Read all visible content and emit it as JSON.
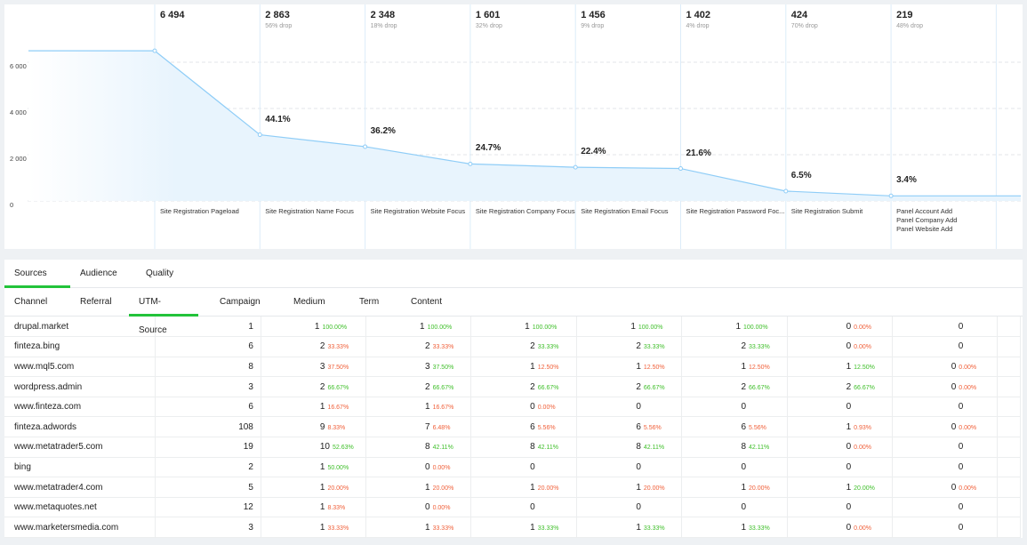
{
  "colors": {
    "line": "#8fcdf7",
    "fill": "#e8f4fd",
    "up": "#3fbf2a",
    "down": "#f0603a",
    "accent": "#22c33a"
  },
  "chart_data": {
    "type": "area",
    "y_ticks": [
      "6 000",
      "4 000",
      "2 000",
      "0"
    ],
    "ylim": [
      0,
      7000
    ],
    "grid": true,
    "steps": [
      {
        "count": "6 494",
        "value": 6494,
        "drop": "",
        "conv": "",
        "labels": [
          "Site Registration Pageload"
        ]
      },
      {
        "count": "2 863",
        "value": 2863,
        "drop": "56% drop",
        "conv": "44.1%",
        "labels": [
          "Site Registration Name Focus"
        ]
      },
      {
        "count": "2 348",
        "value": 2348,
        "drop": "18% drop",
        "conv": "36.2%",
        "labels": [
          "Site Registration Website Focus"
        ]
      },
      {
        "count": "1 601",
        "value": 1601,
        "drop": "32% drop",
        "conv": "24.7%",
        "labels": [
          "Site Registration Company Focus"
        ]
      },
      {
        "count": "1 456",
        "value": 1456,
        "drop": "9% drop",
        "conv": "22.4%",
        "labels": [
          "Site Registration Email Focus"
        ]
      },
      {
        "count": "1 402",
        "value": 1402,
        "drop": "4% drop",
        "conv": "21.6%",
        "labels": [
          "Site Registration Password Foc..."
        ]
      },
      {
        "count": "424",
        "value": 424,
        "drop": "70% drop",
        "conv": "6.5%",
        "labels": [
          "Site Registration Submit"
        ]
      },
      {
        "count": "219",
        "value": 219,
        "drop": "48% drop",
        "conv": "3.4%",
        "labels": [
          "Panel Account Add",
          "Panel Company Add",
          "Panel Website Add"
        ]
      }
    ]
  },
  "tabs": [
    "Sources",
    "Audience",
    "Quality"
  ],
  "active_tab": 0,
  "subtabs": [
    "Channel",
    "Referral",
    "UTM-Source",
    "Campaign",
    "Medium",
    "Term",
    "Content"
  ],
  "active_subtab": 2,
  "rows": [
    {
      "source": "drupal.market",
      "total": "1",
      "cells": [
        [
          "1",
          "100.00%",
          "up"
        ],
        [
          "1",
          "100.00%",
          "up"
        ],
        [
          "1",
          "100.00%",
          "up"
        ],
        [
          "1",
          "100.00%",
          "up"
        ],
        [
          "1",
          "100.00%",
          "up"
        ],
        [
          "0",
          "0.00%",
          "down"
        ],
        [
          "0",
          "",
          ""
        ]
      ]
    },
    {
      "source": "finteza.bing",
      "total": "6",
      "cells": [
        [
          "2",
          "33.33%",
          "down"
        ],
        [
          "2",
          "33.33%",
          "down"
        ],
        [
          "2",
          "33.33%",
          "up"
        ],
        [
          "2",
          "33.33%",
          "up"
        ],
        [
          "2",
          "33.33%",
          "up"
        ],
        [
          "0",
          "0.00%",
          "down"
        ],
        [
          "0",
          "",
          ""
        ]
      ]
    },
    {
      "source": "www.mql5.com",
      "total": "8",
      "cells": [
        [
          "3",
          "37.50%",
          "down"
        ],
        [
          "3",
          "37.50%",
          "up"
        ],
        [
          "1",
          "12.50%",
          "down"
        ],
        [
          "1",
          "12.50%",
          "down"
        ],
        [
          "1",
          "12.50%",
          "down"
        ],
        [
          "1",
          "12.50%",
          "up"
        ],
        [
          "0",
          "0.00%",
          "down"
        ]
      ]
    },
    {
      "source": "wordpress.admin",
      "total": "3",
      "cells": [
        [
          "2",
          "66.67%",
          "up"
        ],
        [
          "2",
          "66.67%",
          "up"
        ],
        [
          "2",
          "66.67%",
          "up"
        ],
        [
          "2",
          "66.67%",
          "up"
        ],
        [
          "2",
          "66.67%",
          "up"
        ],
        [
          "2",
          "66.67%",
          "up"
        ],
        [
          "0",
          "0.00%",
          "down"
        ]
      ]
    },
    {
      "source": "www.finteza.com",
      "total": "6",
      "cells": [
        [
          "1",
          "16.67%",
          "down"
        ],
        [
          "1",
          "16.67%",
          "down"
        ],
        [
          "0",
          "0.00%",
          "down"
        ],
        [
          "0",
          "",
          ""
        ],
        [
          "0",
          "",
          ""
        ],
        [
          "0",
          "",
          ""
        ],
        [
          "0",
          "",
          ""
        ]
      ]
    },
    {
      "source": "finteza.adwords",
      "total": "108",
      "cells": [
        [
          "9",
          "8.33%",
          "down"
        ],
        [
          "7",
          "6.48%",
          "down"
        ],
        [
          "6",
          "5.56%",
          "down"
        ],
        [
          "6",
          "5.56%",
          "down"
        ],
        [
          "6",
          "5.56%",
          "down"
        ],
        [
          "1",
          "0.93%",
          "down"
        ],
        [
          "0",
          "0.00%",
          "down"
        ]
      ]
    },
    {
      "source": "www.metatrader5.com",
      "total": "19",
      "cells": [
        [
          "10",
          "52.63%",
          "up"
        ],
        [
          "8",
          "42.11%",
          "up"
        ],
        [
          "8",
          "42.11%",
          "up"
        ],
        [
          "8",
          "42.11%",
          "up"
        ],
        [
          "8",
          "42.11%",
          "up"
        ],
        [
          "0",
          "0.00%",
          "down"
        ],
        [
          "0",
          "",
          ""
        ]
      ]
    },
    {
      "source": "bing",
      "total": "2",
      "cells": [
        [
          "1",
          "50.00%",
          "up"
        ],
        [
          "0",
          "0.00%",
          "down"
        ],
        [
          "0",
          "",
          ""
        ],
        [
          "0",
          "",
          ""
        ],
        [
          "0",
          "",
          ""
        ],
        [
          "0",
          "",
          ""
        ],
        [
          "0",
          "",
          ""
        ]
      ]
    },
    {
      "source": "www.metatrader4.com",
      "total": "5",
      "cells": [
        [
          "1",
          "20.00%",
          "down"
        ],
        [
          "1",
          "20.00%",
          "down"
        ],
        [
          "1",
          "20.00%",
          "down"
        ],
        [
          "1",
          "20.00%",
          "down"
        ],
        [
          "1",
          "20.00%",
          "down"
        ],
        [
          "1",
          "20.00%",
          "up"
        ],
        [
          "0",
          "0.00%",
          "down"
        ]
      ]
    },
    {
      "source": "www.metaquotes.net",
      "total": "12",
      "cells": [
        [
          "1",
          "8.33%",
          "down"
        ],
        [
          "0",
          "0.00%",
          "down"
        ],
        [
          "0",
          "",
          ""
        ],
        [
          "0",
          "",
          ""
        ],
        [
          "0",
          "",
          ""
        ],
        [
          "0",
          "",
          ""
        ],
        [
          "0",
          "",
          ""
        ]
      ]
    },
    {
      "source": "www.marketersmedia.com",
      "total": "3",
      "cells": [
        [
          "1",
          "33.33%",
          "down"
        ],
        [
          "1",
          "33.33%",
          "down"
        ],
        [
          "1",
          "33.33%",
          "up"
        ],
        [
          "1",
          "33.33%",
          "up"
        ],
        [
          "1",
          "33.33%",
          "up"
        ],
        [
          "0",
          "0.00%",
          "down"
        ],
        [
          "0",
          "",
          ""
        ]
      ]
    }
  ]
}
